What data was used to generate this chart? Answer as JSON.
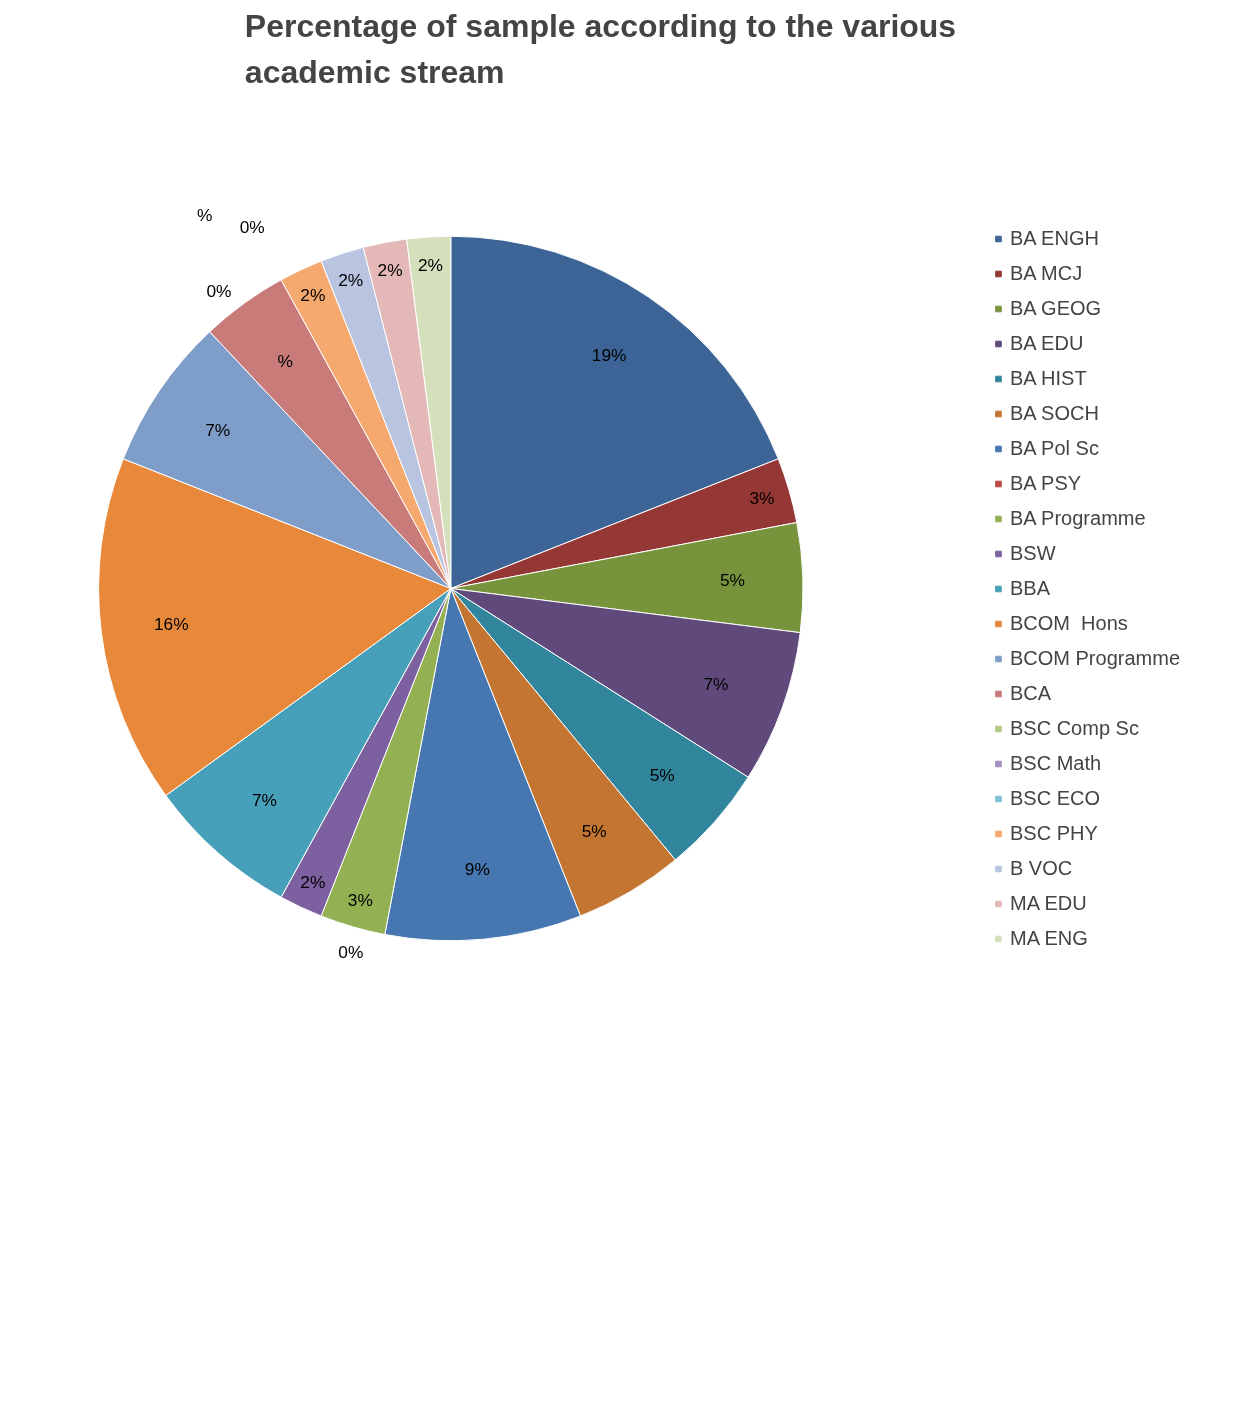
{
  "chart_data": {
    "type": "pie",
    "title": "Percentage of sample according to the various academic stream",
    "categories": [
      "BA ENGH",
      "BA MCJ",
      "BA GEOG",
      "BA EDU",
      "BA HIST",
      "BA SOCH",
      "BA Pol Sc",
      "BA PSY",
      "BA Programme",
      "BSW",
      "BBA",
      "BCOM  Hons",
      "BCOM Programme",
      "BCA",
      "BSC Comp Sc",
      "BSC Math",
      "BSC ECO",
      "BSC PHY",
      "B VOC",
      "MA EDU",
      "MA ENG"
    ],
    "values": [
      19,
      3,
      5,
      7,
      5,
      5,
      9,
      0,
      3,
      2,
      7,
      16,
      7,
      4,
      0,
      0,
      0,
      2,
      2,
      2,
      2
    ],
    "value_labels": [
      "19%",
      "3%",
      "5%",
      "7%",
      "5%",
      "5%",
      "9%",
      "0%",
      "3%",
      "2%",
      "7%",
      "16%",
      "7%",
      "%",
      "0%",
      "%",
      "0%",
      "2%",
      "2%",
      "2%",
      "2%"
    ],
    "colors": [
      "#3c6496",
      "#953735",
      "#77933c",
      "#604a7b",
      "#31859c",
      "#c47532",
      "#4677b0",
      "#bf4b48",
      "#93b152",
      "#7d60a0",
      "#46a0b9",
      "#e8883a",
      "#7f9dc9",
      "#c97b7a",
      "#b3ca84",
      "#a38fbd",
      "#7fc0d2",
      "#f6a96e",
      "#b8c4e0",
      "#e3b8b7",
      "#d3e0bb"
    ],
    "legend": "right"
  }
}
